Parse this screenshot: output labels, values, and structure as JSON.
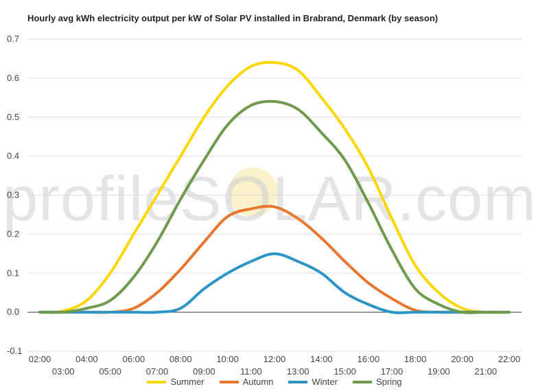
{
  "watermark": "profileSOLAR.com",
  "chart_data": {
    "type": "line",
    "title": "Hourly avg kWh electricity output per kW of Solar PV installed in Brabrand, Denmark (by season)",
    "xlabel": "",
    "ylabel": "",
    "x": [
      "02:00",
      "03:00",
      "04:00",
      "05:00",
      "06:00",
      "07:00",
      "08:00",
      "09:00",
      "10:00",
      "11:00",
      "12:00",
      "13:00",
      "14:00",
      "15:00",
      "16:00",
      "17:00",
      "18:00",
      "19:00",
      "20:00",
      "21:00",
      "22:00"
    ],
    "ylim": [
      -0.1,
      0.7
    ],
    "yticks": [
      "-0.1",
      "0.0",
      "0.1",
      "0.2",
      "0.3",
      "0.4",
      "0.5",
      "0.6",
      "0.7"
    ],
    "grid": true,
    "legend": "bottom",
    "series": [
      {
        "name": "Summer",
        "color": "#FFD700",
        "values": [
          0.0,
          0.003,
          0.03,
          0.1,
          0.2,
          0.3,
          0.4,
          0.5,
          0.58,
          0.63,
          0.64,
          0.62,
          0.55,
          0.47,
          0.37,
          0.24,
          0.12,
          0.05,
          0.01,
          0.0,
          0.0
        ]
      },
      {
        "name": "Autumn",
        "color": "#E8762C",
        "values": [
          0.0,
          0.0,
          0.0,
          0.0,
          0.01,
          0.05,
          0.11,
          0.18,
          0.245,
          0.265,
          0.27,
          0.24,
          0.19,
          0.13,
          0.075,
          0.035,
          0.005,
          0.0,
          0.0,
          0.0,
          0.0
        ]
      },
      {
        "name": "Winter",
        "color": "#2B95C8",
        "values": [
          0.0,
          0.0,
          0.0,
          0.0,
          0.0,
          0.0,
          0.01,
          0.06,
          0.1,
          0.13,
          0.15,
          0.13,
          0.1,
          0.05,
          0.02,
          0.0,
          0.0,
          0.0,
          0.0,
          0.0,
          0.0
        ]
      },
      {
        "name": "Spring",
        "color": "#6E9A4E",
        "values": [
          0.0,
          0.0,
          0.01,
          0.03,
          0.09,
          0.18,
          0.29,
          0.39,
          0.48,
          0.53,
          0.54,
          0.52,
          0.46,
          0.39,
          0.28,
          0.16,
          0.06,
          0.02,
          0.0,
          0.0,
          0.0
        ]
      }
    ]
  }
}
